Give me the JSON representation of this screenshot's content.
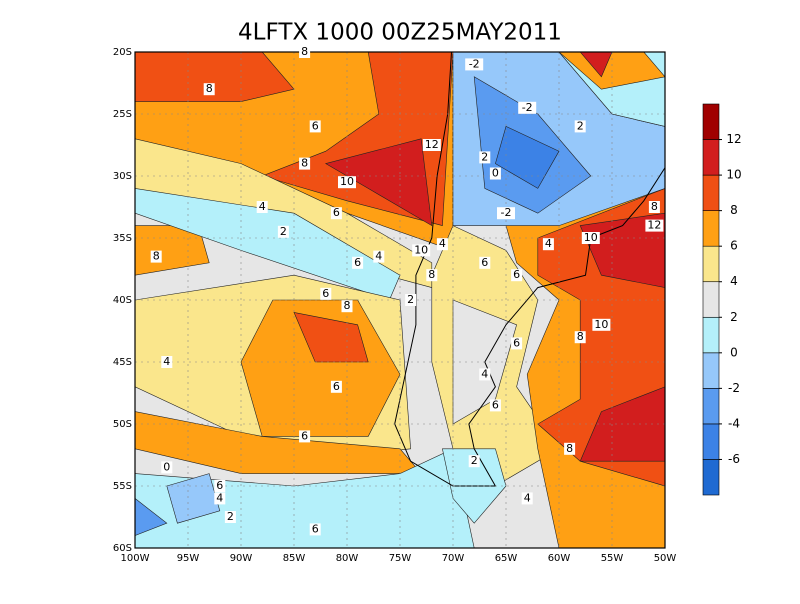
{
  "title": "4LFTX 1000 00Z25MAY2011",
  "lon_ticks": [
    {
      "value": -100,
      "label": "100W"
    },
    {
      "value": -95,
      "label": "95W"
    },
    {
      "value": -90,
      "label": "90W"
    },
    {
      "value": -85,
      "label": "85W"
    },
    {
      "value": -80,
      "label": "80W"
    },
    {
      "value": -75,
      "label": "75W"
    },
    {
      "value": -70,
      "label": "70W"
    },
    {
      "value": -65,
      "label": "65W"
    },
    {
      "value": -60,
      "label": "60W"
    },
    {
      "value": -55,
      "label": "55W"
    },
    {
      "value": -50,
      "label": "50W"
    }
  ],
  "lat_ticks": [
    {
      "value": -20,
      "label": "20S"
    },
    {
      "value": -25,
      "label": "25S"
    },
    {
      "value": -30,
      "label": "30S"
    },
    {
      "value": -35,
      "label": "35S"
    },
    {
      "value": -40,
      "label": "40S"
    },
    {
      "value": -45,
      "label": "45S"
    },
    {
      "value": -50,
      "label": "50S"
    },
    {
      "value": -55,
      "label": "55S"
    },
    {
      "value": -60,
      "label": "60S"
    }
  ],
  "colorbar": {
    "levels": [
      -6,
      -4,
      -2,
      0,
      2,
      4,
      6,
      8,
      10,
      12
    ],
    "colors": [
      "#1f6ad2",
      "#3c82e6",
      "#5a9bf0",
      "#96c8fa",
      "#b4f0fa",
      "#e6e6e6",
      "#fae68c",
      "#ffa014",
      "#f05014",
      "#d21e1e",
      "#a00000"
    ]
  },
  "contour_labels": [
    {
      "text": "8",
      "lon": -93,
      "lat": -23
    },
    {
      "text": "8",
      "lon": -84,
      "lat": -20
    },
    {
      "text": "6",
      "lon": -83,
      "lat": -26
    },
    {
      "text": "8",
      "lon": -84,
      "lat": -29
    },
    {
      "text": "10",
      "lon": -80,
      "lat": -30.5
    },
    {
      "text": "12",
      "lon": -72,
      "lat": -27.5
    },
    {
      "text": "6",
      "lon": -81,
      "lat": -33
    },
    {
      "text": "4",
      "lon": -88,
      "lat": -32.5
    },
    {
      "text": "2",
      "lon": -86,
      "lat": -34.5
    },
    {
      "text": "4",
      "lon": -77,
      "lat": -36.5
    },
    {
      "text": "6",
      "lon": -79,
      "lat": -37
    },
    {
      "text": "8",
      "lon": -98,
      "lat": -36.5
    },
    {
      "text": "6",
      "lon": -82,
      "lat": -39.5
    },
    {
      "text": "8",
      "lon": -80,
      "lat": -40.5
    },
    {
      "text": "2",
      "lon": -74,
      "lat": -40
    },
    {
      "text": "4",
      "lon": -97,
      "lat": -45
    },
    {
      "text": "6",
      "lon": -81,
      "lat": -47
    },
    {
      "text": "6",
      "lon": -84,
      "lat": -51
    },
    {
      "text": "0",
      "lon": -97,
      "lat": -53.5
    },
    {
      "text": "6",
      "lon": -92,
      "lat": -55
    },
    {
      "text": "4",
      "lon": -92,
      "lat": -56
    },
    {
      "text": "2",
      "lon": -91,
      "lat": -57.5
    },
    {
      "text": "6",
      "lon": -83,
      "lat": -58.5
    },
    {
      "text": "10",
      "lon": -73,
      "lat": -36
    },
    {
      "text": "8",
      "lon": -72,
      "lat": -38
    },
    {
      "text": "-2",
      "lon": -68,
      "lat": -21
    },
    {
      "text": "-2",
      "lon": -63,
      "lat": -24.5
    },
    {
      "text": "2",
      "lon": -58,
      "lat": -26
    },
    {
      "text": "2",
      "lon": -67,
      "lat": -28.5
    },
    {
      "text": "0",
      "lon": -66,
      "lat": -29.8
    },
    {
      "text": "-2",
      "lon": -65,
      "lat": -33
    },
    {
      "text": "4",
      "lon": -71,
      "lat": -35.5
    },
    {
      "text": "6",
      "lon": -67,
      "lat": -37
    },
    {
      "text": "6",
      "lon": -64,
      "lat": -38
    },
    {
      "text": "4",
      "lon": -61,
      "lat": -35.5
    },
    {
      "text": "10",
      "lon": -57,
      "lat": -35
    },
    {
      "text": "12",
      "lon": -51,
      "lat": -34
    },
    {
      "text": "8",
      "lon": -51,
      "lat": -32.5
    },
    {
      "text": "8",
      "lon": -58,
      "lat": -43
    },
    {
      "text": "10",
      "lon": -56,
      "lat": -42
    },
    {
      "text": "6",
      "lon": -64,
      "lat": -43.5
    },
    {
      "text": "4",
      "lon": -67,
      "lat": -46
    },
    {
      "text": "6",
      "lon": -66,
      "lat": -48.5
    },
    {
      "text": "8",
      "lon": -59,
      "lat": -52
    },
    {
      "text": "2",
      "lon": -68,
      "lat": -53
    },
    {
      "text": "4",
      "lon": -63,
      "lat": -56
    }
  ]
}
